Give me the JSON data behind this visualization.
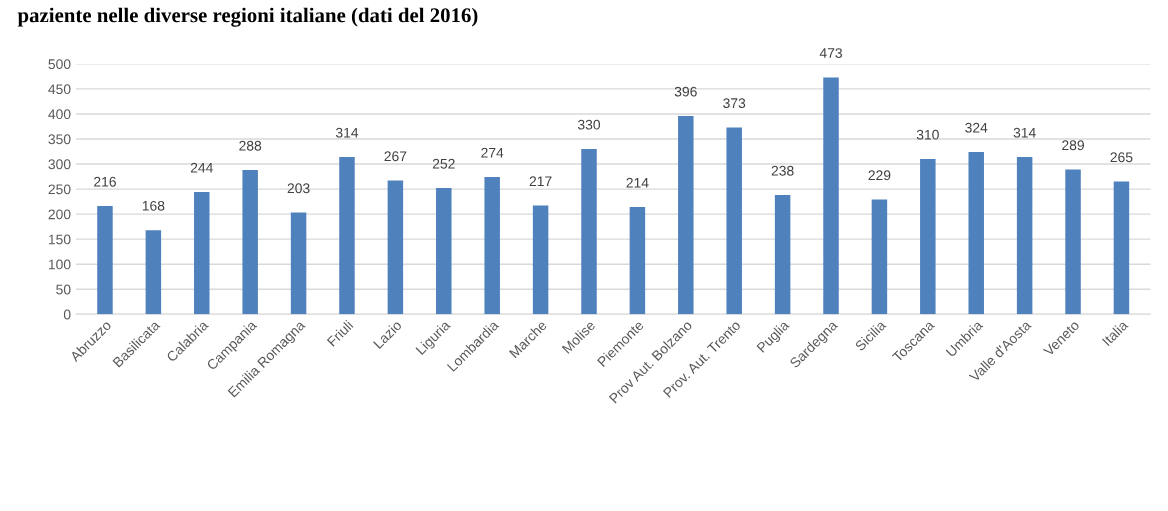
{
  "chart_data": {
    "type": "bar",
    "title": "paziente nelle diverse regioni italiane (dati del 2016)",
    "categories": [
      "Abruzzo",
      "Basilicata",
      "Calabria",
      "Campania",
      "Emilia Romagna",
      "Friuli",
      "Lazio",
      "Liguria",
      "Lombardia",
      "Marche",
      "Molise",
      "Piemonte",
      "Prov Aut. Bolzano",
      "Prov. Aut. Trento",
      "Puglia",
      "Sardegna",
      "Sicilia",
      "Toscana",
      "Umbria",
      "Valle d'Aosta",
      "Veneto",
      "Italia"
    ],
    "values": [
      216,
      168,
      244,
      288,
      203,
      314,
      267,
      252,
      274,
      217,
      330,
      214,
      396,
      373,
      238,
      473,
      229,
      310,
      324,
      314,
      289,
      265
    ],
    "color": "#4f81bd",
    "ylim": [
      0,
      500
    ],
    "yticks": [
      0,
      50,
      100,
      150,
      200,
      250,
      300,
      350,
      400,
      450,
      500
    ],
    "grid": "y",
    "data_labels": true
  }
}
